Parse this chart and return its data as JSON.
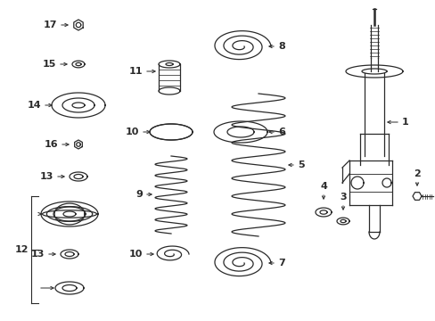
{
  "bg_color": "#ffffff",
  "line_color": "#2a2a2a",
  "lw": 0.9,
  "fig_w": 4.89,
  "fig_h": 3.6,
  "dpi": 100
}
